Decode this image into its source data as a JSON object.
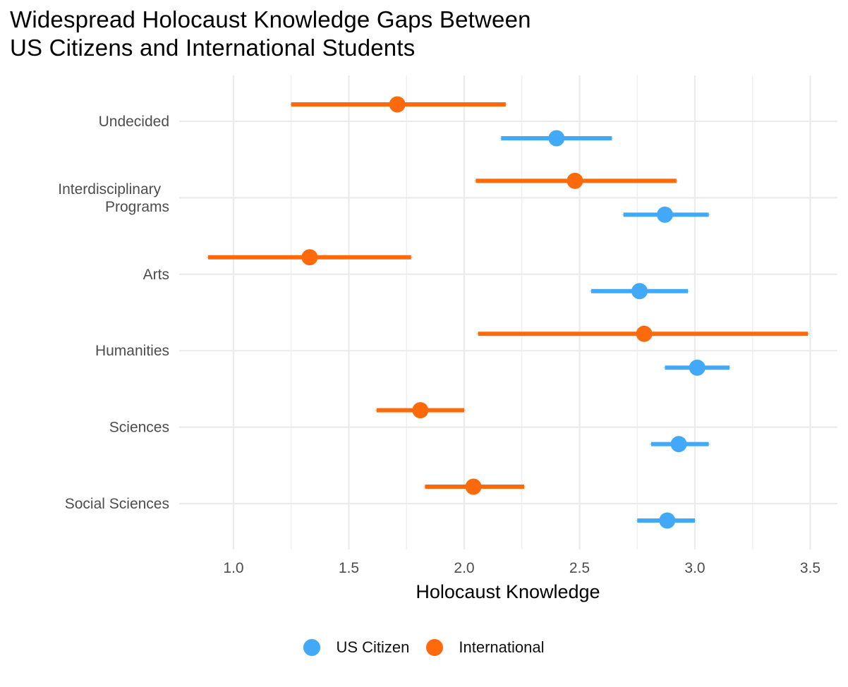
{
  "chart_data": {
    "type": "scatter",
    "subtype": "dot-and-errorbar (pointrange), horizontal",
    "title": "Widespread Holocaust Knowledge Gaps Between US Citizens and International Students",
    "title_lines": [
      "Widespread Holocaust Knowledge Gaps Between",
      "US Citizens and International Students"
    ],
    "xlabel": "Holocaust Knowledge",
    "ylabel": "",
    "xlim": [
      0.765,
      3.618
    ],
    "xticks": [
      1.0,
      1.5,
      2.0,
      2.5,
      3.0,
      3.5
    ],
    "xtick_labels": [
      "1.0",
      "1.5",
      "2.0",
      "2.5",
      "3.0",
      "3.5"
    ],
    "xminor": [
      1.25,
      1.75,
      2.25,
      2.75,
      3.25
    ],
    "grid": true,
    "legend_position": "bottom",
    "categories": [
      "Undecided",
      "Interdisciplinary \nPrograms",
      "Arts",
      "Humanities",
      "Sciences",
      "Social Sciences"
    ],
    "category_labels": [
      [
        "Undecided"
      ],
      [
        "Interdisciplinary ",
        "Programs"
      ],
      [
        "Arts"
      ],
      [
        "Humanities"
      ],
      [
        "Sciences"
      ],
      [
        "Social Sciences"
      ]
    ],
    "series": [
      {
        "name": "US Citizen",
        "color": "#42A9F9",
        "mean": [
          2.4,
          2.87,
          2.76,
          3.01,
          2.93,
          2.88
        ],
        "lower": [
          2.16,
          2.69,
          2.55,
          2.87,
          2.81,
          2.75
        ],
        "upper": [
          2.64,
          3.06,
          2.97,
          3.15,
          3.06,
          3.0
        ]
      },
      {
        "name": "International",
        "color": "#FD6A0B",
        "mean": [
          1.71,
          2.48,
          1.33,
          2.78,
          1.81,
          2.04
        ],
        "lower": [
          1.25,
          2.05,
          0.89,
          2.06,
          1.62,
          1.83
        ],
        "upper": [
          2.18,
          2.92,
          1.77,
          3.49,
          2.0,
          2.26
        ]
      }
    ]
  },
  "legend": {
    "items": [
      {
        "label": "US Citizen",
        "color": "#42A9F9"
      },
      {
        "label": "International",
        "color": "#FD6A0B"
      }
    ]
  },
  "colors": {
    "grid": "#EBEBEB",
    "tick_text": "#4D4D4D"
  }
}
